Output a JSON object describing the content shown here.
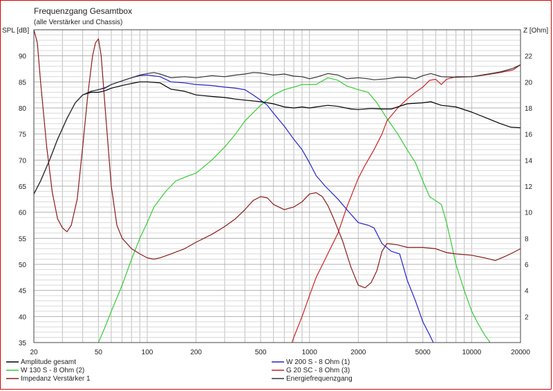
{
  "chart_data": {
    "type": "line",
    "title": "Frequenzgang Gesamtbox",
    "subtitle": "(alle Verstärker und Chassis)",
    "ylabel_left": "SPL [dB]",
    "ylabel_right": "Z [Ohm]",
    "x_scale": "log",
    "xlim": [
      20,
      20000
    ],
    "ylim_left": [
      35,
      95
    ],
    "ylim_right": [
      0,
      24
    ],
    "grid": true,
    "legend_position": "bottom",
    "x_ticks": [
      20,
      50,
      100,
      200,
      500,
      1000,
      2000,
      5000,
      10000,
      20000
    ],
    "x_tick_labels": [
      "20",
      "50",
      "100",
      "200",
      "500",
      "1000",
      "2000",
      "5000",
      "10000",
      "20000"
    ],
    "y_ticks_left": [
      35,
      40,
      45,
      50,
      55,
      60,
      65,
      70,
      75,
      80,
      85,
      90
    ],
    "y_ticks_right": [
      2,
      4,
      6,
      8,
      10,
      12,
      14,
      16,
      18,
      20,
      22
    ],
    "series": [
      {
        "name": "Amplitude gesamt",
        "axis": "left",
        "color": "#000000",
        "points": [
          [
            20,
            63.5
          ],
          [
            22,
            66
          ],
          [
            25,
            70
          ],
          [
            28,
            74
          ],
          [
            32,
            78
          ],
          [
            36,
            81
          ],
          [
            40,
            82.5
          ],
          [
            45,
            83
          ],
          [
            50,
            83
          ],
          [
            55,
            83.3
          ],
          [
            60,
            83.8
          ],
          [
            70,
            84.3
          ],
          [
            80,
            84.7
          ],
          [
            90,
            85
          ],
          [
            100,
            85
          ],
          [
            120,
            84.8
          ],
          [
            140,
            83.6
          ],
          [
            170,
            83.2
          ],
          [
            200,
            82.5
          ],
          [
            250,
            82.2
          ],
          [
            300,
            82
          ],
          [
            350,
            81.7
          ],
          [
            400,
            81.5
          ],
          [
            500,
            81.2
          ],
          [
            600,
            80.8
          ],
          [
            700,
            80.2
          ],
          [
            800,
            80
          ],
          [
            900,
            80.2
          ],
          [
            1000,
            80
          ],
          [
            1100,
            80.2
          ],
          [
            1300,
            80.5
          ],
          [
            1500,
            80.3
          ],
          [
            1800,
            79.8
          ],
          [
            2000,
            79.7
          ],
          [
            2400,
            79.9
          ],
          [
            2800,
            79.8
          ],
          [
            3200,
            79.8
          ],
          [
            4000,
            80.8
          ],
          [
            5000,
            81
          ],
          [
            5600,
            81.2
          ],
          [
            6500,
            80.5
          ],
          [
            8000,
            80.2
          ],
          [
            10000,
            79.2
          ],
          [
            12500,
            78
          ],
          [
            15000,
            77
          ],
          [
            17500,
            76.3
          ],
          [
            20000,
            76.2
          ]
        ]
      },
      {
        "name": "W 200 S - 8 Ohm (1)",
        "axis": "left",
        "color": "#2222cc",
        "points": [
          [
            20,
            63.5
          ],
          [
            22,
            66
          ],
          [
            25,
            70
          ],
          [
            28,
            74
          ],
          [
            32,
            78
          ],
          [
            36,
            81
          ],
          [
            40,
            82.5
          ],
          [
            45,
            83.2
          ],
          [
            50,
            83.5
          ],
          [
            55,
            83.8
          ],
          [
            60,
            84.5
          ],
          [
            70,
            85.2
          ],
          [
            80,
            85.8
          ],
          [
            90,
            86.2
          ],
          [
            100,
            86.3
          ],
          [
            120,
            86
          ],
          [
            140,
            85
          ],
          [
            170,
            84.8
          ],
          [
            200,
            84.5
          ],
          [
            250,
            84.3
          ],
          [
            300,
            84
          ],
          [
            350,
            83.8
          ],
          [
            400,
            83.5
          ],
          [
            450,
            82.5
          ],
          [
            500,
            81.5
          ],
          [
            550,
            80.5
          ],
          [
            600,
            79
          ],
          [
            700,
            76.5
          ],
          [
            800,
            74
          ],
          [
            900,
            72
          ],
          [
            1000,
            69.5
          ],
          [
            1100,
            67
          ],
          [
            1250,
            65
          ],
          [
            1500,
            62.5
          ],
          [
            1700,
            60.5
          ],
          [
            2000,
            58
          ],
          [
            2300,
            57.5
          ],
          [
            2500,
            57
          ],
          [
            2800,
            54
          ],
          [
            3200,
            52.5
          ],
          [
            3600,
            52
          ],
          [
            4000,
            47
          ],
          [
            4500,
            43
          ],
          [
            5000,
            39
          ],
          [
            5500,
            36.5
          ],
          [
            5800,
            35
          ]
        ]
      },
      {
        "name": "W 130 S - 8 Ohm (2)",
        "axis": "left",
        "color": "#33cc33",
        "points": [
          [
            50,
            35
          ],
          [
            55,
            38
          ],
          [
            60,
            41
          ],
          [
            70,
            46
          ],
          [
            80,
            51
          ],
          [
            90,
            55
          ],
          [
            100,
            58
          ],
          [
            110,
            61
          ],
          [
            130,
            64
          ],
          [
            150,
            66
          ],
          [
            180,
            67
          ],
          [
            200,
            67.5
          ],
          [
            250,
            70
          ],
          [
            300,
            72.5
          ],
          [
            350,
            75
          ],
          [
            400,
            77.5
          ],
          [
            500,
            80.5
          ],
          [
            600,
            82.5
          ],
          [
            700,
            83.5
          ],
          [
            800,
            84
          ],
          [
            900,
            84.5
          ],
          [
            1000,
            84.5
          ],
          [
            1100,
            84.5
          ],
          [
            1300,
            85.8
          ],
          [
            1500,
            85.3
          ],
          [
            1700,
            84.2
          ],
          [
            2000,
            83.5
          ],
          [
            2300,
            83
          ],
          [
            2600,
            81
          ],
          [
            3000,
            78
          ],
          [
            3500,
            75
          ],
          [
            4000,
            72
          ],
          [
            4500,
            69.5
          ],
          [
            5000,
            66
          ],
          [
            5500,
            63
          ],
          [
            6000,
            62.2
          ],
          [
            6500,
            61.5
          ],
          [
            7000,
            58
          ],
          [
            7500,
            54
          ],
          [
            8000,
            50
          ],
          [
            9000,
            45
          ],
          [
            10000,
            41
          ],
          [
            11000,
            38.5
          ],
          [
            12000,
            36.5
          ],
          [
            13000,
            35
          ]
        ]
      },
      {
        "name": "G 20 SC - 8 Ohm (3)",
        "axis": "left",
        "color": "#cc2222",
        "points": [
          [
            780,
            35
          ],
          [
            800,
            36
          ],
          [
            900,
            40
          ],
          [
            1000,
            44
          ],
          [
            1100,
            47.5
          ],
          [
            1250,
            51
          ],
          [
            1500,
            56
          ],
          [
            1700,
            61
          ],
          [
            2000,
            66.5
          ],
          [
            2200,
            69
          ],
          [
            2500,
            72
          ],
          [
            2800,
            75
          ],
          [
            3000,
            77.5
          ],
          [
            3500,
            80
          ],
          [
            4000,
            81.7
          ],
          [
            4500,
            83
          ],
          [
            5000,
            84
          ],
          [
            5500,
            85.3
          ],
          [
            6000,
            85.5
          ],
          [
            6500,
            84.5
          ],
          [
            7000,
            85.5
          ],
          [
            8000,
            86
          ],
          [
            9000,
            86
          ],
          [
            10000,
            86
          ],
          [
            12000,
            86.3
          ],
          [
            15000,
            86.8
          ],
          [
            18000,
            87.3
          ],
          [
            20000,
            88.3
          ]
        ]
      },
      {
        "name": "Impedanz Verstärker 1",
        "axis": "right",
        "color": "#8b1a1a",
        "points": [
          [
            20,
            24
          ],
          [
            21,
            23
          ],
          [
            22,
            20
          ],
          [
            24,
            15
          ],
          [
            26,
            11.5
          ],
          [
            28,
            9.5
          ],
          [
            30,
            8.8
          ],
          [
            32,
            8.5
          ],
          [
            34,
            9
          ],
          [
            37,
            11
          ],
          [
            40,
            15
          ],
          [
            43,
            19
          ],
          [
            46,
            22
          ],
          [
            48,
            23
          ],
          [
            50,
            23.3
          ],
          [
            52,
            22
          ],
          [
            55,
            18
          ],
          [
            60,
            12
          ],
          [
            65,
            9
          ],
          [
            70,
            8
          ],
          [
            80,
            7.2
          ],
          [
            90,
            6.8
          ],
          [
            100,
            6.5
          ],
          [
            110,
            6.4
          ],
          [
            120,
            6.5
          ],
          [
            140,
            6.8
          ],
          [
            170,
            7.2
          ],
          [
            200,
            7.7
          ],
          [
            250,
            8.3
          ],
          [
            300,
            8.9
          ],
          [
            350,
            9.5
          ],
          [
            400,
            10.2
          ],
          [
            450,
            10.9
          ],
          [
            500,
            11.2
          ],
          [
            550,
            11.1
          ],
          [
            600,
            10.6
          ],
          [
            700,
            10.2
          ],
          [
            800,
            10.4
          ],
          [
            900,
            10.8
          ],
          [
            1000,
            11.4
          ],
          [
            1100,
            11.5
          ],
          [
            1200,
            11.2
          ],
          [
            1300,
            10.5
          ],
          [
            1400,
            9.6
          ],
          [
            1600,
            7.8
          ],
          [
            1800,
            5.8
          ],
          [
            2000,
            4.4
          ],
          [
            2200,
            4.2
          ],
          [
            2400,
            4.6
          ],
          [
            2600,
            5.5
          ],
          [
            2800,
            7
          ],
          [
            3000,
            7.6
          ],
          [
            3500,
            7.5
          ],
          [
            4000,
            7.3
          ],
          [
            5000,
            7.3
          ],
          [
            6000,
            7.2
          ],
          [
            7000,
            6.9
          ],
          [
            8000,
            6.8
          ],
          [
            10000,
            6.7
          ],
          [
            12000,
            6.5
          ],
          [
            14000,
            6.3
          ],
          [
            16000,
            6.6
          ],
          [
            18000,
            6.9
          ],
          [
            20000,
            7.2
          ]
        ]
      },
      {
        "name": "Energiefrequenzgang",
        "axis": "left",
        "color": "#333333",
        "points": [
          [
            20,
            63.5
          ],
          [
            22,
            66
          ],
          [
            25,
            70
          ],
          [
            28,
            74
          ],
          [
            32,
            78
          ],
          [
            36,
            81
          ],
          [
            40,
            82.5
          ],
          [
            45,
            83.2
          ],
          [
            50,
            83.5
          ],
          [
            55,
            83.9
          ],
          [
            60,
            84.5
          ],
          [
            70,
            85.2
          ],
          [
            80,
            85.8
          ],
          [
            90,
            86.3
          ],
          [
            100,
            86.6
          ],
          [
            110,
            86.8
          ],
          [
            120,
            86.5
          ],
          [
            140,
            85.8
          ],
          [
            170,
            86
          ],
          [
            200,
            85.8
          ],
          [
            250,
            86.2
          ],
          [
            300,
            86
          ],
          [
            350,
            86.3
          ],
          [
            400,
            86.5
          ],
          [
            450,
            86.8
          ],
          [
            500,
            86.7
          ],
          [
            600,
            86.3
          ],
          [
            700,
            86.5
          ],
          [
            800,
            86.1
          ],
          [
            900,
            86
          ],
          [
            1000,
            85.6
          ],
          [
            1100,
            85.9
          ],
          [
            1300,
            86.6
          ],
          [
            1500,
            86.3
          ],
          [
            1700,
            85.6
          ],
          [
            2000,
            85.8
          ],
          [
            2300,
            85.6
          ],
          [
            2500,
            85.4
          ],
          [
            3000,
            85.6
          ],
          [
            3500,
            85.9
          ],
          [
            4000,
            85.9
          ],
          [
            4500,
            85.6
          ],
          [
            5000,
            86.2
          ],
          [
            5600,
            86.6
          ],
          [
            6500,
            86
          ],
          [
            8000,
            85.9
          ],
          [
            10000,
            86
          ],
          [
            12000,
            86.4
          ],
          [
            15000,
            86.9
          ],
          [
            18000,
            87.6
          ],
          [
            20000,
            88.3
          ]
        ]
      }
    ]
  }
}
